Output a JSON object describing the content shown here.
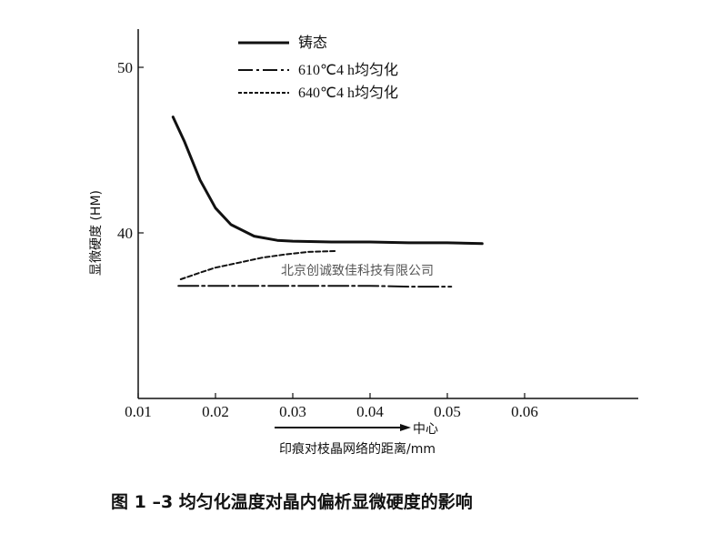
{
  "chart_data": {
    "type": "line",
    "title": "",
    "caption": "图 1 –3   均匀化温度对晶内偏析显微硬度的影响",
    "xlabel": "印痕对枝晶网络的距离/mm",
    "x_annotation": "中心",
    "ylabel": "显微硬度 (HM)",
    "xlim": [
      0.01,
      0.065
    ],
    "ylim": [
      30,
      52
    ],
    "x_ticks": [
      "0.01",
      "0.02",
      "0.03",
      "0.04",
      "0.05",
      "0.06"
    ],
    "y_ticks": [
      "40",
      "50"
    ],
    "grid": false,
    "legend_position": "top-center",
    "watermark": "北京创诚致佳科技有限公司",
    "series": [
      {
        "name": "铸态",
        "style": "solid",
        "x": [
          0.0145,
          0.016,
          0.018,
          0.02,
          0.022,
          0.025,
          0.028,
          0.03,
          0.035,
          0.04,
          0.045,
          0.05,
          0.0545
        ],
        "y": [
          47.0,
          45.5,
          43.2,
          41.5,
          40.5,
          39.8,
          39.55,
          39.5,
          39.45,
          39.45,
          39.4,
          39.4,
          39.35
        ]
      },
      {
        "name": "610℃4 h均匀化",
        "style": "dashdot",
        "x": [
          0.0152,
          0.02,
          0.025,
          0.03,
          0.035,
          0.04,
          0.045,
          0.0505
        ],
        "y": [
          36.8,
          36.8,
          36.8,
          36.8,
          36.8,
          36.8,
          36.75,
          36.75
        ]
      },
      {
        "name": "640℃4 h均匀化",
        "style": "dashed",
        "x": [
          0.0155,
          0.018,
          0.02,
          0.023,
          0.026,
          0.029,
          0.032,
          0.0355
        ],
        "y": [
          37.2,
          37.6,
          37.9,
          38.2,
          38.5,
          38.7,
          38.85,
          38.9
        ]
      }
    ]
  }
}
